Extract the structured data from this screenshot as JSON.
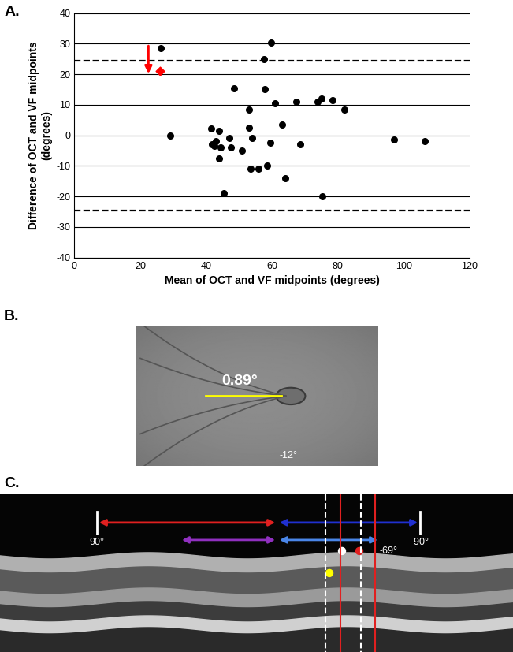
{
  "chart_data": {
    "type": "scatter",
    "panel": "A.",
    "x_label": "Mean of OCT and VF midpoints (degrees)",
    "y_label": "Difference of OCT and VF midpoints\n(degrees)",
    "x": [
      26.3,
      59.8,
      57.5,
      57.8,
      48.5,
      75.0,
      73.8,
      78.5,
      67.5,
      61.0,
      82.0,
      53.0,
      63.0,
      41.5,
      53.0,
      44.0,
      29.0,
      97.0,
      106.5,
      47.0,
      54.0,
      43.0,
      59.5,
      68.5,
      42.5,
      44.5,
      47.5,
      50.8,
      44.0,
      58.5,
      53.5,
      56.0,
      64.0,
      45.5,
      75.3,
      41.8
    ],
    "values": [
      28.5,
      30.3,
      25.0,
      15.0,
      15.5,
      12.0,
      11.0,
      11.5,
      11.0,
      10.5,
      8.5,
      8.5,
      3.5,
      2.3,
      2.5,
      1.5,
      0.0,
      -1.5,
      -2.0,
      -1.0,
      -1.0,
      -2.0,
      -2.5,
      -3.0,
      -3.5,
      -4.0,
      -4.0,
      -5.0,
      -7.5,
      -10.0,
      -11.0,
      -11.0,
      -14.0,
      -19.0,
      -20.0,
      -3.0
    ],
    "color": "#000000",
    "marker": "circle",
    "highlight": {
      "x": [
        26.0
      ],
      "values": [
        21.0
      ],
      "color": "#ff0000",
      "marker": "diamond"
    },
    "arrow": {
      "x": 22.5,
      "from": 30.0,
      "to": 19.5,
      "color": "#ff0000"
    },
    "reference_lines": {
      "values": [
        24.3,
        -24.7
      ],
      "color": "#000000",
      "line_style": "dashed"
    },
    "xlim": [
      0,
      120
    ],
    "ylim": [
      -40,
      40
    ],
    "xticks": [
      0,
      20,
      40,
      60,
      80,
      100,
      120
    ],
    "yticks": [
      -40,
      -30,
      -20,
      -10,
      0,
      10,
      20,
      30,
      40
    ],
    "grid": "y"
  },
  "fundus_panel": {
    "panel": "B.",
    "measurement": "0.89°",
    "angle": "-12°"
  },
  "oct_panel": {
    "panel": "C.",
    "left_label": "90°",
    "midpoint_label": "-69°",
    "right_label": "-90°"
  }
}
